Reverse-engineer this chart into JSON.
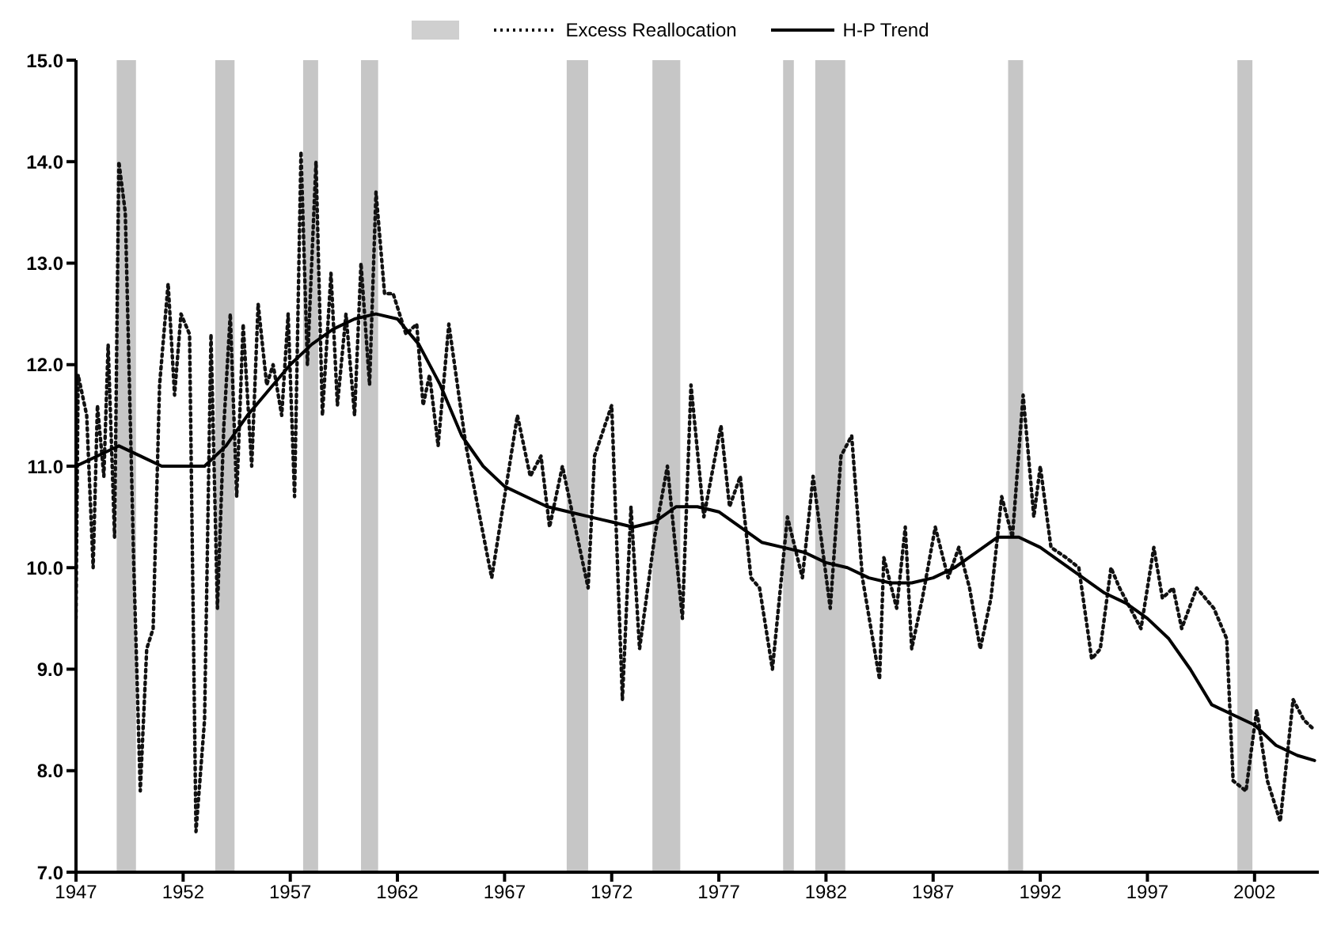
{
  "chart_data": {
    "type": "line",
    "legend": "top",
    "grid": false,
    "marker": "none",
    "xlim": [
      1947,
      2005
    ],
    "xticks": [
      1947,
      1952,
      1957,
      1962,
      1967,
      1972,
      1977,
      1982,
      1987,
      1992,
      1997,
      2002
    ],
    "ylim": [
      7,
      15
    ],
    "yticks": [
      {
        "value": 7,
        "label": "7.0"
      },
      {
        "value": 8,
        "label": "8.0"
      },
      {
        "value": 9,
        "label": "9.0"
      },
      {
        "value": 10,
        "label": "10.0"
      },
      {
        "value": 11,
        "label": "11.0"
      },
      {
        "value": 12,
        "label": "12.0"
      },
      {
        "value": 13,
        "label": "13.0"
      },
      {
        "value": 14,
        "label": "14.0"
      },
      {
        "value": 15,
        "label": "15.0"
      }
    ],
    "bands": [
      {
        "axis": "x",
        "from": 1948.9,
        "to": 1949.8,
        "color": "#a0a0a0"
      },
      {
        "axis": "x",
        "from": 1953.5,
        "to": 1954.4,
        "color": "#a0a0a0"
      },
      {
        "axis": "x",
        "from": 1957.6,
        "to": 1958.3,
        "color": "#a0a0a0"
      },
      {
        "axis": "x",
        "from": 1960.3,
        "to": 1961.1,
        "color": "#a0a0a0"
      },
      {
        "axis": "x",
        "from": 1969.9,
        "to": 1970.9,
        "color": "#a0a0a0"
      },
      {
        "axis": "x",
        "from": 1973.9,
        "to": 1975.2,
        "color": "#a0a0a0"
      },
      {
        "axis": "x",
        "from": 1980,
        "to": 1980.5,
        "color": "#a0a0a0"
      },
      {
        "axis": "x",
        "from": 1981.5,
        "to": 1982.9,
        "color": "#a0a0a0"
      },
      {
        "axis": "x",
        "from": 1990.5,
        "to": 1991.2,
        "color": "#a0a0a0"
      },
      {
        "axis": "x",
        "from": 2001.2,
        "to": 2001.9,
        "color": "#a0a0a0"
      }
    ],
    "series": [
      {
        "name": "Excess Reallocation",
        "color": "#111111",
        "line_style": "dotted",
        "x": [
          1947,
          1947.1,
          1947.5,
          1947.8,
          1948,
          1948.3,
          1948.5,
          1948.8,
          1949,
          1949.3,
          1949.7,
          1950,
          1950.3,
          1950.6,
          1950.9,
          1951.3,
          1951.6,
          1951.9,
          1952.3,
          1952.6,
          1953,
          1953.3,
          1953.6,
          1953.9,
          1954.2,
          1954.5,
          1954.8,
          1955.2,
          1955.5,
          1955.9,
          1956.2,
          1956.6,
          1956.9,
          1957.2,
          1957.5,
          1957.8,
          1958.2,
          1958.5,
          1958.9,
          1959.2,
          1959.6,
          1960,
          1960.3,
          1960.7,
          1961,
          1961.4,
          1961.8,
          1962.4,
          1962.9,
          1963.2,
          1963.5,
          1963.9,
          1964.4,
          1965.2,
          1966.4,
          1967.6,
          1968.2,
          1968.7,
          1969.1,
          1969.7,
          1970.9,
          1971.2,
          1972,
          1972.5,
          1972.9,
          1973.3,
          1974,
          1974.6,
          1975.3,
          1975.7,
          1976.3,
          1977.1,
          1977.5,
          1978,
          1978.5,
          1978.9,
          1979.5,
          1980.2,
          1980.9,
          1981.4,
          1982.2,
          1982.7,
          1983.2,
          1983.7,
          1984.5,
          1984.7,
          1985.3,
          1985.7,
          1986,
          1986.5,
          1987.1,
          1987.7,
          1988.2,
          1988.7,
          1989.2,
          1989.7,
          1990.2,
          1990.7,
          1991.2,
          1991.7,
          1992,
          1992.5,
          1993.2,
          1993.8,
          1994.4,
          1994.8,
          1995.3,
          1995.7,
          1996.2,
          1996.7,
          1997.3,
          1997.7,
          1998.2,
          1998.6,
          1999.3,
          2000.1,
          2000.7,
          2001,
          2001.6,
          2002.1,
          2002.6,
          2003.2,
          2003.8,
          2004.3,
          2004.8
        ],
        "values": [
          9.5,
          11.9,
          11.5,
          10.0,
          11.6,
          10.9,
          12.2,
          10.3,
          14.0,
          13.5,
          10.0,
          7.8,
          9.2,
          9.4,
          11.8,
          12.8,
          11.7,
          12.5,
          12.3,
          7.4,
          8.5,
          12.3,
          9.6,
          11.4,
          12.5,
          10.7,
          12.4,
          11.0,
          12.6,
          11.8,
          12.0,
          11.5,
          12.5,
          10.7,
          14.1,
          12.0,
          14.0,
          11.5,
          12.9,
          11.6,
          12.5,
          11.5,
          13.0,
          11.8,
          13.7,
          12.7,
          12.7,
          12.3,
          12.4,
          11.6,
          11.9,
          11.2,
          12.4,
          11.2,
          9.9,
          11.5,
          10.9,
          11.1,
          10.4,
          11.0,
          9.8,
          11.1,
          11.6,
          8.7,
          10.6,
          9.2,
          10.3,
          11.0,
          9.5,
          11.8,
          10.5,
          11.4,
          10.6,
          10.9,
          9.9,
          9.8,
          9.0,
          10.5,
          9.9,
          10.9,
          9.6,
          11.1,
          11.3,
          9.9,
          8.9,
          10.1,
          9.6,
          10.4,
          9.2,
          9.7,
          10.4,
          9.9,
          10.2,
          9.8,
          9.2,
          9.7,
          10.7,
          10.3,
          11.7,
          10.5,
          11.0,
          10.2,
          10.1,
          10.0,
          9.1,
          9.2,
          10.0,
          9.8,
          9.6,
          9.4,
          10.2,
          9.7,
          9.8,
          9.4,
          9.8,
          9.6,
          9.3,
          7.9,
          7.8,
          8.6,
          7.9,
          7.5,
          8.7,
          8.5,
          8.4
        ]
      },
      {
        "name": "H-P Trend",
        "color": "#000000",
        "line_style": "solid",
        "x": [
          1947,
          1948.5,
          1949,
          1950,
          1951,
          1952,
          1953,
          1954,
          1955,
          1956,
          1957,
          1958,
          1959,
          1960,
          1961,
          1962,
          1963,
          1964,
          1965,
          1966,
          1967,
          1968,
          1969,
          1970,
          1971,
          1972,
          1973,
          1974,
          1975,
          1976,
          1977,
          1978,
          1979,
          1980,
          1981,
          1982,
          1983,
          1984,
          1985,
          1986,
          1987,
          1988,
          1989,
          1990,
          1991,
          1992,
          1993,
          1994,
          1995,
          1996,
          1997,
          1998,
          1999,
          2000,
          2001,
          2002,
          2003,
          2004,
          2004.8
        ],
        "values": [
          11.0,
          11.15,
          11.2,
          11.1,
          11.0,
          11.0,
          11.0,
          11.2,
          11.5,
          11.75,
          12.0,
          12.2,
          12.35,
          12.45,
          12.5,
          12.45,
          12.2,
          11.8,
          11.3,
          11.0,
          10.8,
          10.7,
          10.6,
          10.55,
          10.5,
          10.45,
          10.4,
          10.45,
          10.6,
          10.6,
          10.55,
          10.4,
          10.25,
          10.2,
          10.15,
          10.05,
          10.0,
          9.9,
          9.85,
          9.85,
          9.9,
          10.0,
          10.15,
          10.3,
          10.3,
          10.2,
          10.05,
          9.9,
          9.75,
          9.65,
          9.5,
          9.3,
          9.0,
          8.65,
          8.55,
          8.45,
          8.25,
          8.15,
          8.1
        ]
      }
    ]
  }
}
